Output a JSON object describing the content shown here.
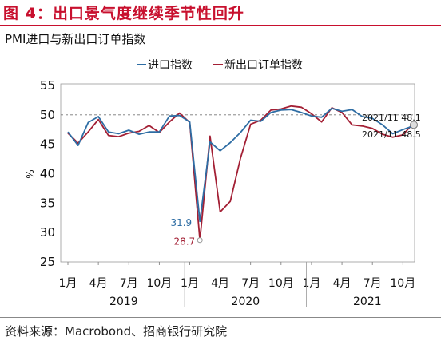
{
  "figure_title": "图 4：出口景气度继续季节性回升",
  "source": "资料来源：Macrobond、招商银行研究院",
  "colors": {
    "title": "#c8102e",
    "export": "#2e6da4",
    "new_export": "#a31f34"
  },
  "chart_data": {
    "type": "line",
    "title": "PMI进口与新出口订单指数",
    "ylabel": "%",
    "ylim": [
      25,
      55
    ],
    "yticks": [
      25,
      30,
      35,
      40,
      45,
      50,
      55
    ],
    "reference_line": 50,
    "x": [
      "2019-01",
      "2019-02",
      "2019-03",
      "2019-04",
      "2019-05",
      "2019-06",
      "2019-07",
      "2019-08",
      "2019-09",
      "2019-10",
      "2019-11",
      "2019-12",
      "2020-01",
      "2020-02",
      "2020-03",
      "2020-04",
      "2020-05",
      "2020-06",
      "2020-07",
      "2020-08",
      "2020-09",
      "2020-10",
      "2020-11",
      "2020-12",
      "2021-01",
      "2021-02",
      "2021-03",
      "2021-04",
      "2021-05",
      "2021-06",
      "2021-07",
      "2021-08",
      "2021-09",
      "2021-10",
      "2021-11"
    ],
    "x_tick_labels": [
      "1月",
      "4月",
      "7月",
      "10月",
      "1月",
      "4月",
      "7月",
      "10月",
      "1月",
      "4月",
      "7月",
      "10月"
    ],
    "year_labels": [
      "2019",
      "2020",
      "2021"
    ],
    "legend_position": "top",
    "series": [
      {
        "name": "进口指数",
        "color": "#2e6da4",
        "values": [
          47.1,
          44.8,
          48.7,
          49.7,
          47.1,
          46.8,
          47.4,
          46.7,
          47.1,
          47.1,
          49.8,
          49.9,
          48.8,
          31.9,
          45.4,
          43.9,
          45.3,
          47.0,
          49.1,
          48.9,
          50.4,
          50.8,
          50.9,
          50.4,
          49.8,
          49.6,
          51.1,
          50.6,
          50.9,
          49.7,
          49.4,
          48.3,
          46.8,
          47.5,
          48.1
        ]
      },
      {
        "name": "新出口订单指数",
        "color": "#a31f34",
        "values": [
          46.9,
          45.2,
          47.1,
          49.2,
          46.5,
          46.3,
          46.9,
          47.2,
          48.2,
          47.0,
          48.8,
          50.3,
          48.7,
          28.7,
          46.4,
          33.5,
          35.3,
          42.6,
          48.4,
          49.1,
          50.8,
          51.0,
          51.5,
          51.3,
          50.2,
          48.8,
          51.2,
          50.4,
          48.3,
          48.1,
          47.7,
          46.7,
          46.2,
          46.6,
          48.5
        ]
      }
    ],
    "annotations": [
      {
        "text": "31.9",
        "series": 0,
        "index": 13
      },
      {
        "text": "28.7",
        "series": 1,
        "index": 13
      },
      {
        "text": "2021/11 48.1",
        "series": 0,
        "index": 34
      },
      {
        "text": "2021/11 48.5",
        "series": 1,
        "index": 34
      }
    ]
  }
}
